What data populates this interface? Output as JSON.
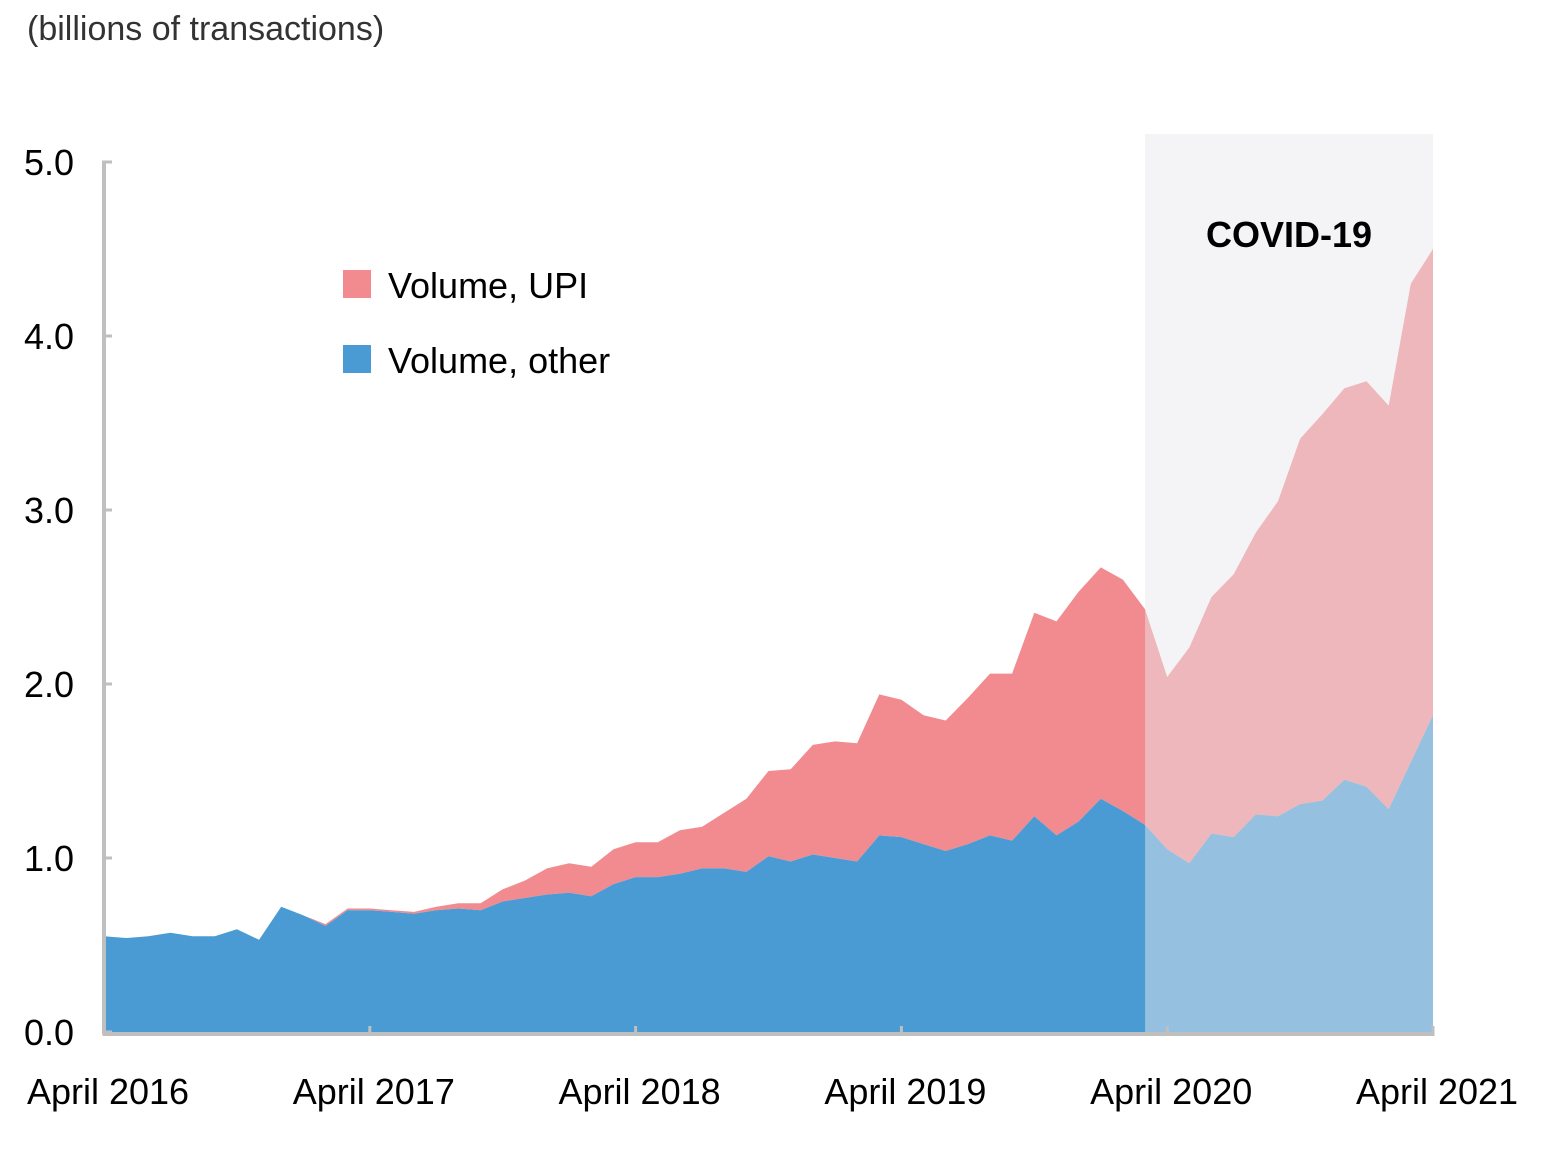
{
  "chart_data": {
    "type": "area",
    "stacked": true,
    "unit_label": "(billions of transactions)",
    "ylim": [
      0,
      5
    ],
    "yticks": [
      "0.0",
      "1.0",
      "2.0",
      "3.0",
      "4.0",
      "5.0"
    ],
    "yticks_values": [
      0,
      1,
      2,
      3,
      4,
      5
    ],
    "xticks": [
      "April 2016",
      "April 2017",
      "April 2018",
      "April 2019",
      "April 2020",
      "April 2021"
    ],
    "x_start": "April 2016",
    "x_end": "April 2021",
    "frequency": "monthly",
    "shaded_region": {
      "label": "COVID-19",
      "start": "March 2020",
      "end": "April 2021",
      "color": "#e8e8ec"
    },
    "legend_position": "upper-left",
    "series": [
      {
        "name": "Volume, other",
        "color": "#4a9bd4",
        "values": [
          0.55,
          0.54,
          0.55,
          0.57,
          0.55,
          0.55,
          0.59,
          0.53,
          0.72,
          0.67,
          0.61,
          0.7,
          0.7,
          0.69,
          0.68,
          0.7,
          0.71,
          0.7,
          0.75,
          0.77,
          0.79,
          0.8,
          0.78,
          0.85,
          0.89,
          0.89,
          0.91,
          0.94,
          0.94,
          0.92,
          1.01,
          0.98,
          1.02,
          1.0,
          0.98,
          1.13,
          1.12,
          1.08,
          1.04,
          1.08,
          1.13,
          1.1,
          1.24,
          1.13,
          1.21,
          1.34,
          1.27,
          1.19,
          1.05,
          0.97,
          1.14,
          1.12,
          1.25,
          1.24,
          1.31,
          1.33,
          1.45,
          1.41,
          1.28,
          1.55,
          1.82
        ]
      },
      {
        "name": "Volume, UPI",
        "color": "#f28b8f",
        "values": [
          0,
          0,
          0,
          0,
          0,
          0,
          0,
          0,
          0,
          0,
          0.01,
          0.01,
          0.01,
          0.01,
          0.01,
          0.02,
          0.03,
          0.04,
          0.07,
          0.1,
          0.15,
          0.17,
          0.17,
          0.2,
          0.2,
          0.2,
          0.25,
          0.24,
          0.32,
          0.42,
          0.49,
          0.53,
          0.63,
          0.67,
          0.68,
          0.81,
          0.79,
          0.74,
          0.75,
          0.84,
          0.93,
          0.96,
          1.17,
          1.23,
          1.32,
          1.33,
          1.33,
          1.24,
          0.99,
          1.24,
          1.36,
          1.51,
          1.62,
          1.81,
          2.1,
          2.22,
          2.25,
          2.33,
          2.32,
          2.75,
          2.68
        ]
      }
    ]
  },
  "legend": {
    "upi_label": "Volume, UPI",
    "other_label": "Volume, other"
  }
}
